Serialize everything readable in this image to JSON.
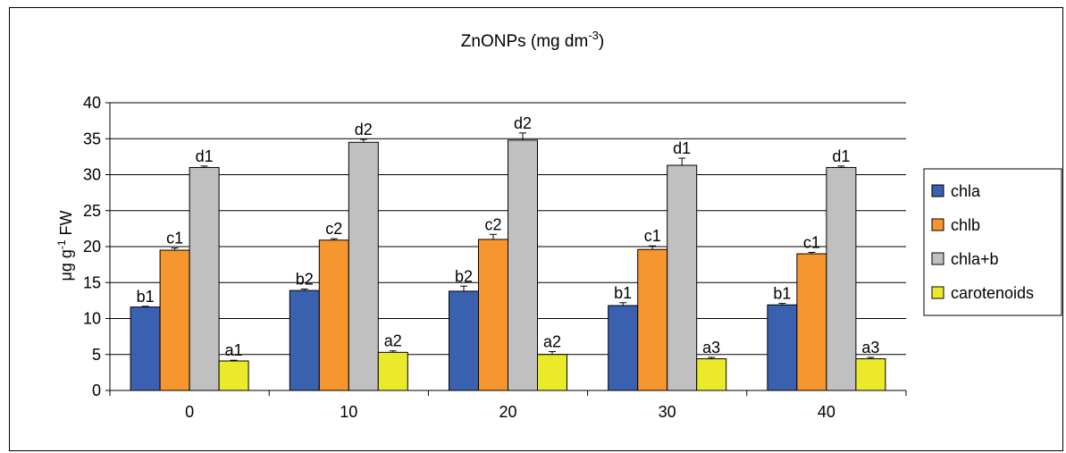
{
  "chart_data": {
    "type": "bar",
    "title": "ZnONPs (mg dm",
    "title_superscript": "-3",
    "title_suffix": ")",
    "ylabel_parts": [
      "μg g",
      "-1",
      " FW"
    ],
    "xlabel": "",
    "categories": [
      "0",
      "10",
      "20",
      "30",
      "40"
    ],
    "ylim": [
      0,
      40
    ],
    "yticks": [
      0,
      5,
      10,
      15,
      20,
      25,
      30,
      35,
      40
    ],
    "grid": true,
    "legend_position": "right",
    "series": [
      {
        "name": "chla",
        "color": "#3A60B0",
        "values": [
          11.6,
          13.9,
          13.8,
          11.8,
          11.9
        ],
        "errors": [
          0.1,
          0.2,
          0.7,
          0.4,
          0.2
        ],
        "labels": [
          "b1",
          "b2",
          "b2",
          "b1",
          "b1"
        ]
      },
      {
        "name": "chlb",
        "color": "#F7962E",
        "values": [
          19.5,
          20.9,
          21.0,
          19.6,
          19.0
        ],
        "errors": [
          0.3,
          0.2,
          0.7,
          0.5,
          0.2
        ],
        "labels": [
          "c1",
          "c2",
          "c2",
          "c1",
          "c1"
        ]
      },
      {
        "name": "chla+b",
        "color": "#C0C0C0",
        "values": [
          31.0,
          34.5,
          34.8,
          31.3,
          31.0
        ],
        "errors": [
          0.2,
          0.4,
          1.0,
          1.0,
          0.2
        ],
        "labels": [
          "d1",
          "d2",
          "d2",
          "d1",
          "d1"
        ]
      },
      {
        "name": "carotenoids",
        "color": "#EAEA2A",
        "values": [
          4.1,
          5.3,
          5.0,
          4.4,
          4.4
        ],
        "errors": [
          0.1,
          0.2,
          0.4,
          0.2,
          0.2
        ],
        "labels": [
          "a1",
          "a2",
          "a2",
          "a3",
          "a3"
        ]
      }
    ]
  }
}
